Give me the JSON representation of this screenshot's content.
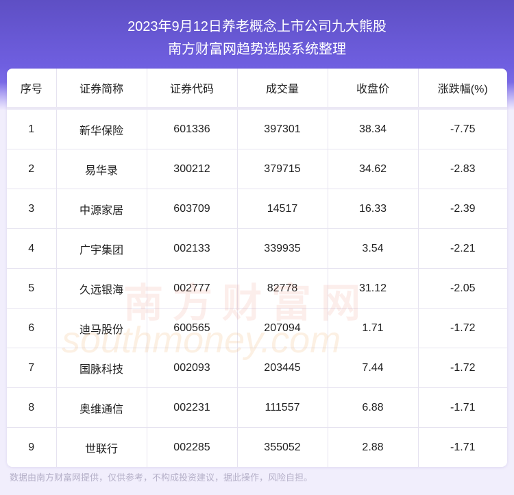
{
  "header": {
    "title": "2023年9月12日养老概念上市公司九大熊股",
    "subtitle": "南方财富网趋势选股系统整理"
  },
  "table": {
    "columns": [
      "序号",
      "证券简称",
      "证券代码",
      "成交量",
      "收盘价",
      "涨跌幅(%)"
    ],
    "rows": [
      [
        "1",
        "新华保险",
        "601336",
        "397301",
        "38.34",
        "-7.75"
      ],
      [
        "2",
        "易华录",
        "300212",
        "379715",
        "34.62",
        "-2.83"
      ],
      [
        "3",
        "中源家居",
        "603709",
        "14517",
        "16.33",
        "-2.39"
      ],
      [
        "4",
        "广宇集团",
        "002133",
        "339935",
        "3.54",
        "-2.21"
      ],
      [
        "5",
        "久远银海",
        "002777",
        "82778",
        "31.12",
        "-2.05"
      ],
      [
        "6",
        "迪马股份",
        "600565",
        "207094",
        "1.71",
        "-1.72"
      ],
      [
        "7",
        "国脉科技",
        "002093",
        "203445",
        "7.44",
        "-1.72"
      ],
      [
        "8",
        "奥维通信",
        "002231",
        "111557",
        "6.88",
        "-1.71"
      ],
      [
        "9",
        "世联行",
        "002285",
        "355052",
        "2.88",
        "-1.71"
      ]
    ]
  },
  "watermark": {
    "cn": "南方财富网",
    "en": "southmoney.com"
  },
  "footer": "数据由南方财富网提供，仅供参考，不构成投资建议，据此操作，风险自担。"
}
